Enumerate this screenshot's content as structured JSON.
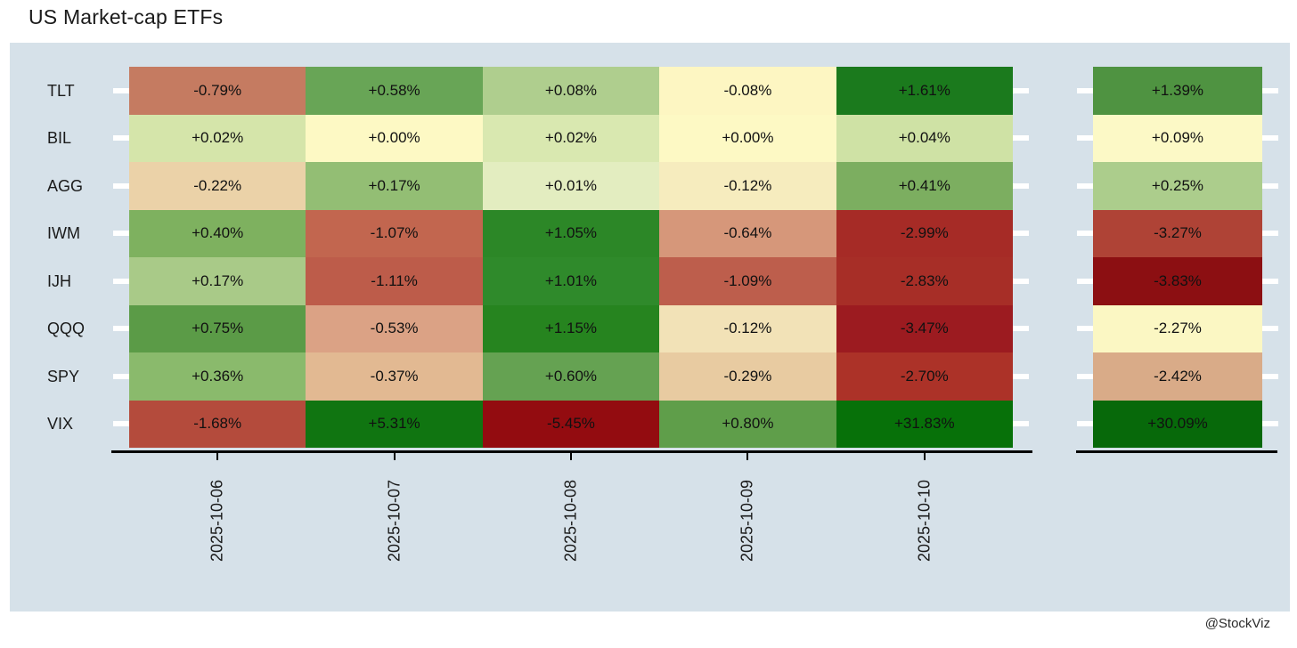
{
  "title": "US Market-cap ETFs",
  "watermark": "@StockViz",
  "chart_data": {
    "type": "heatmap",
    "title": "US Market-cap ETFs",
    "colormap": "RdYlGn",
    "panel_background": "#d6e1e9",
    "axis_color": "#000000",
    "tick_dash_color": "#ffffff",
    "rows": [
      "TLT",
      "BIL",
      "AGG",
      "IWM",
      "IJH",
      "QQQ",
      "SPY",
      "VIX"
    ],
    "columns": [
      "2025-10-06",
      "2025-10-07",
      "2025-10-08",
      "2025-10-09",
      "2025-10-10"
    ],
    "values": [
      [
        -0.79,
        0.58,
        0.08,
        -0.08,
        1.61
      ],
      [
        0.02,
        0.0,
        0.02,
        0.0,
        0.04
      ],
      [
        -0.22,
        0.17,
        0.01,
        -0.12,
        0.41
      ],
      [
        0.4,
        -1.07,
        1.05,
        -0.64,
        -2.99
      ],
      [
        0.17,
        -1.11,
        1.01,
        -1.09,
        -2.83
      ],
      [
        0.75,
        -0.53,
        1.15,
        -0.12,
        -3.47
      ],
      [
        0.36,
        -0.37,
        0.6,
        -0.29,
        -2.7
      ],
      [
        -1.68,
        5.31,
        -5.45,
        0.8,
        31.83
      ]
    ],
    "labels": [
      [
        "-0.79%",
        "+0.58%",
        "+0.08%",
        "-0.08%",
        "+1.61%"
      ],
      [
        "+0.02%",
        "+0.00%",
        "+0.02%",
        "+0.00%",
        "+0.04%"
      ],
      [
        "-0.22%",
        "+0.17%",
        "+0.01%",
        "-0.12%",
        "+0.41%"
      ],
      [
        "+0.40%",
        "-1.07%",
        "+1.05%",
        "-0.64%",
        "-2.99%"
      ],
      [
        "+0.17%",
        "-1.11%",
        "+1.01%",
        "-1.09%",
        "-2.83%"
      ],
      [
        "+0.75%",
        "-0.53%",
        "+1.15%",
        "-0.12%",
        "-3.47%"
      ],
      [
        "+0.36%",
        "-0.37%",
        "+0.60%",
        "-0.29%",
        "-2.70%"
      ],
      [
        "-1.68%",
        "+5.31%",
        "-5.45%",
        "+0.80%",
        "+31.83%"
      ]
    ],
    "colors": [
      [
        "#c57b61",
        "#68a556",
        "#afce8e",
        "#fdf6c2",
        "#1b7a1d"
      ],
      [
        "#d5e5aa",
        "#fdf9c4",
        "#d9e8b0",
        "#fdf9c4",
        "#cfe2a5"
      ],
      [
        "#ebd2a8",
        "#93be74",
        "#e3edc0",
        "#f6ecbe",
        "#7cae60"
      ],
      [
        "#7eb15f",
        "#c2664f",
        "#2c8727",
        "#d6977a",
        "#a62b26"
      ],
      [
        "#a9ca88",
        "#bd5c4a",
        "#2f8a2b",
        "#bd5e4c",
        "#a72e27"
      ],
      [
        "#5b9b47",
        "#dba285",
        "#26841f",
        "#f2e2b7",
        "#9c1b20"
      ],
      [
        "#8aba6c",
        "#e2b992",
        "#65a252",
        "#e8cba1",
        "#ac3228"
      ],
      [
        "#b44b3c",
        "#107511",
        "#930c10",
        "#5f9e4a",
        "#077109"
      ]
    ],
    "summary_column": {
      "values": [
        1.39,
        0.09,
        0.25,
        -3.27,
        -3.83,
        -2.27,
        -2.42,
        30.09
      ],
      "labels": [
        "+1.39%",
        "+0.09%",
        "+0.25%",
        "-3.27%",
        "-3.83%",
        "-2.27%",
        "-2.42%",
        "+30.09%"
      ],
      "colors": [
        "#4f9341",
        "#fcf9c6",
        "#accd8c",
        "#af4336",
        "#8c0f12",
        "#fbf7c3",
        "#d9ab88",
        "#07690a"
      ]
    }
  }
}
